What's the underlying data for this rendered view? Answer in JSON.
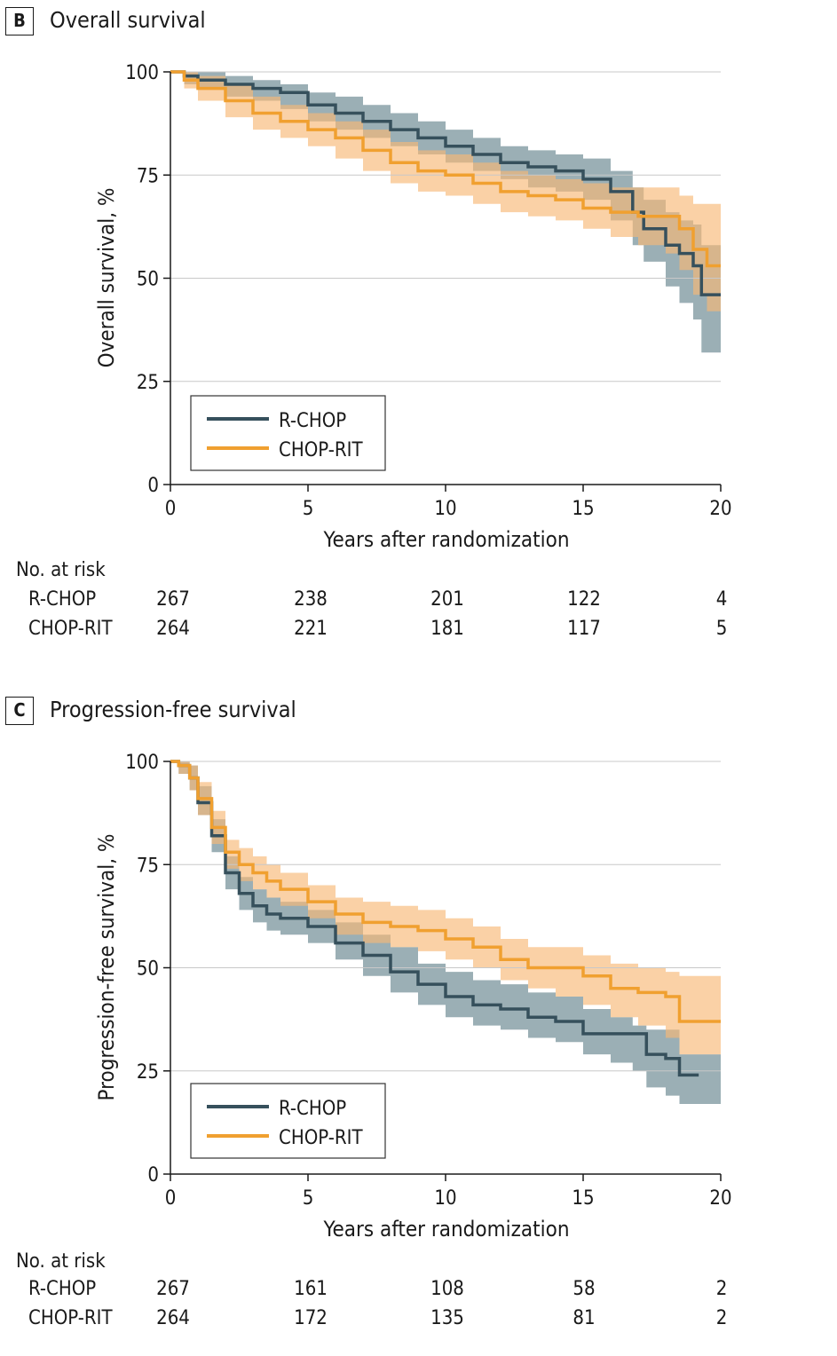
{
  "chart_data": [
    {
      "type": "line",
      "panel_label": "B",
      "title": "Overall survival",
      "xlabel": "Years after randomization",
      "ylabel": "Overall survival, %",
      "xlim": [
        0,
        20
      ],
      "ylim": [
        0,
        100
      ],
      "x_ticks": [
        "0",
        "5",
        "10",
        "15",
        "20"
      ],
      "y_ticks": [
        "0",
        "25",
        "50",
        "75",
        "100"
      ],
      "grid": "horizontal",
      "legend_position": "bottom-left",
      "series": [
        {
          "name": "R-CHOP",
          "color": "#36505c",
          "band_color": "#7a949c",
          "x": [
            0,
            0.5,
            1,
            2,
            3,
            4,
            5,
            6,
            7,
            8,
            9,
            10,
            11,
            12,
            13,
            14,
            15,
            16,
            16.8,
            17.2,
            18,
            18.5,
            19,
            19.3,
            20
          ],
          "y": [
            100,
            99,
            98,
            97,
            96,
            95,
            92,
            90,
            88,
            86,
            84,
            82,
            80,
            78,
            77,
            76,
            74,
            71,
            66,
            62,
            58,
            56,
            53,
            46,
            46
          ],
          "lower": [
            100,
            97,
            96,
            94,
            93,
            91,
            88,
            86,
            84,
            82,
            80,
            78,
            76,
            74,
            72,
            71,
            69,
            64,
            58,
            54,
            48,
            44,
            40,
            32,
            32
          ],
          "upper": [
            100,
            100,
            100,
            99,
            98,
            97,
            95,
            94,
            92,
            90,
            88,
            86,
            84,
            82,
            81,
            80,
            79,
            76,
            72,
            69,
            66,
            64,
            63,
            58,
            58
          ]
        },
        {
          "name": "CHOP-RIT",
          "color": "#f0a030",
          "band_color": "#f7b977",
          "x": [
            0,
            0.5,
            1,
            2,
            3,
            4,
            5,
            6,
            7,
            8,
            9,
            10,
            11,
            12,
            13,
            14,
            15,
            16,
            17,
            18,
            18.5,
            19,
            19.5,
            20
          ],
          "y": [
            100,
            98,
            96,
            93,
            90,
            88,
            86,
            84,
            81,
            78,
            76,
            75,
            73,
            71,
            70,
            69,
            67,
            66,
            65,
            65,
            62,
            57,
            53,
            53
          ],
          "lower": [
            100,
            96,
            93,
            89,
            86,
            84,
            82,
            79,
            76,
            73,
            71,
            70,
            68,
            66,
            65,
            64,
            62,
            60,
            58,
            56,
            52,
            46,
            42,
            42
          ],
          "upper": [
            100,
            100,
            99,
            97,
            94,
            92,
            90,
            88,
            86,
            83,
            81,
            80,
            78,
            76,
            75,
            74,
            73,
            72,
            72,
            72,
            70,
            68,
            68,
            68
          ]
        }
      ],
      "at_risk": {
        "title": "No. at risk",
        "rows": [
          {
            "label": "R-CHOP",
            "values": [
              "267",
              "238",
              "201",
              "122",
              "4"
            ]
          },
          {
            "label": "CHOP-RIT",
            "values": [
              "264",
              "221",
              "181",
              "117",
              "5"
            ]
          }
        ]
      }
    },
    {
      "type": "line",
      "panel_label": "C",
      "title": "Progression-free survival",
      "xlabel": "Years after randomization",
      "ylabel": "Progression-free survival, %",
      "xlim": [
        0,
        20
      ],
      "ylim": [
        0,
        100
      ],
      "x_ticks": [
        "0",
        "5",
        "10",
        "15",
        "20"
      ],
      "y_ticks": [
        "0",
        "25",
        "50",
        "75",
        "100"
      ],
      "grid": "horizontal",
      "legend_position": "bottom-left",
      "series": [
        {
          "name": "R-CHOP",
          "color": "#36505c",
          "band_color": "#7a949c",
          "x": [
            0,
            0.3,
            0.7,
            1,
            1.5,
            2,
            2.5,
            3,
            3.5,
            4,
            5,
            6,
            7,
            8,
            9,
            10,
            11,
            12,
            13,
            14,
            15,
            16,
            16.8,
            17.3,
            18,
            18.5,
            19.2
          ],
          "y": [
            100,
            99,
            96,
            90,
            82,
            73,
            68,
            65,
            63,
            62,
            60,
            56,
            53,
            49,
            46,
            43,
            41,
            40,
            38,
            37,
            34,
            34,
            34,
            29,
            28,
            24,
            24
          ],
          "lower": [
            100,
            97,
            93,
            87,
            78,
            69,
            64,
            61,
            59,
            58,
            56,
            52,
            48,
            44,
            41,
            38,
            36,
            35,
            33,
            32,
            29,
            27,
            25,
            21,
            19,
            17,
            17
          ],
          "upper": [
            100,
            100,
            99,
            94,
            86,
            77,
            72,
            69,
            67,
            66,
            64,
            61,
            58,
            55,
            51,
            49,
            47,
            46,
            44,
            43,
            40,
            38,
            36,
            35,
            35,
            29,
            29
          ],
          "extend_to_x": 20
        },
        {
          "name": "CHOP-RIT",
          "color": "#f0a030",
          "band_color": "#f7b977",
          "x": [
            0,
            0.3,
            0.7,
            1,
            1.5,
            2,
            2.5,
            3,
            3.5,
            4,
            5,
            6,
            7,
            8,
            9,
            10,
            11,
            12,
            13,
            14,
            15,
            16,
            17,
            18,
            18.5,
            20
          ],
          "y": [
            100,
            99,
            96,
            91,
            84,
            78,
            75,
            73,
            71,
            69,
            66,
            63,
            61,
            60,
            59,
            57,
            55,
            52,
            50,
            50,
            48,
            45,
            44,
            43,
            37,
            37
          ],
          "lower": [
            100,
            97,
            93,
            87,
            80,
            74,
            71,
            69,
            67,
            65,
            62,
            58,
            56,
            55,
            54,
            52,
            50,
            47,
            45,
            43,
            41,
            38,
            36,
            33,
            29,
            29
          ],
          "upper": [
            100,
            100,
            99,
            95,
            88,
            81,
            79,
            77,
            75,
            73,
            70,
            67,
            66,
            65,
            64,
            62,
            60,
            57,
            55,
            55,
            53,
            51,
            50,
            49,
            48,
            48
          ]
        }
      ],
      "at_risk": {
        "title": "No. at risk",
        "rows": [
          {
            "label": "R-CHOP",
            "values": [
              "267",
              "161",
              "108",
              "58",
              "2"
            ]
          },
          {
            "label": "CHOP-RIT",
            "values": [
              "264",
              "172",
              "135",
              "81",
              "2"
            ]
          }
        ]
      }
    }
  ]
}
